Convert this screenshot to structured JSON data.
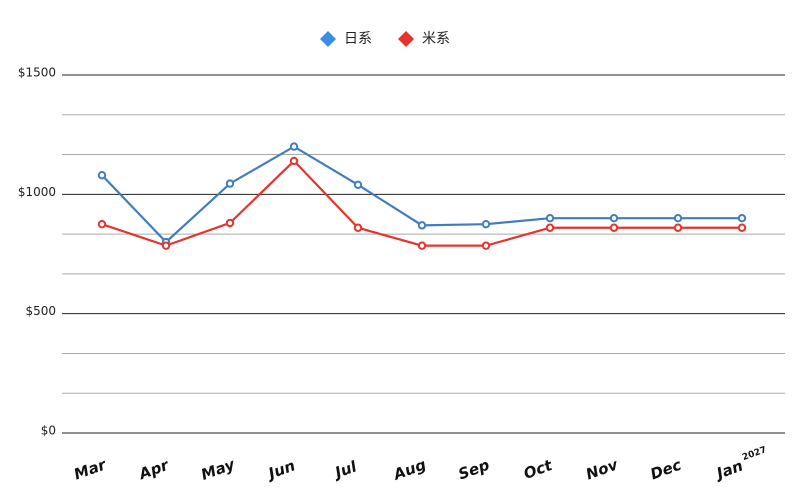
{
  "chart_data": {
    "type": "line",
    "categories": [
      "Mar",
      "Apr",
      "May",
      "Jun",
      "Jul",
      "Aug",
      "Sep",
      "Oct",
      "Nov",
      "Dec",
      "Jan"
    ],
    "category_superscripts": [
      null,
      null,
      null,
      null,
      null,
      null,
      null,
      null,
      null,
      null,
      "2027"
    ],
    "series": [
      {
        "name": "日系",
        "color": "#3f7dbf",
        "legend_color": "#3b8ee8",
        "values": [
          1080,
          800,
          1045,
          1200,
          1040,
          870,
          875,
          900,
          900,
          900,
          900
        ]
      },
      {
        "name": "米系",
        "color": "#e8332a",
        "legend_color": "#e8332a",
        "values": [
          875,
          785,
          880,
          1140,
          860,
          785,
          785,
          860,
          860,
          860,
          860
        ]
      }
    ],
    "ylim": [
      0,
      1500
    ],
    "yticks": [
      {
        "value": 0,
        "label": "$0"
      },
      {
        "value": 500,
        "label": "$500"
      },
      {
        "value": 1000,
        "label": "$1000"
      },
      {
        "value": 1500,
        "label": "$1500"
      }
    ],
    "minor_yticks": [
      166.7,
      333.3,
      666.7,
      833.3,
      1166.7,
      1333.3
    ],
    "grid": true,
    "legend": "top"
  }
}
